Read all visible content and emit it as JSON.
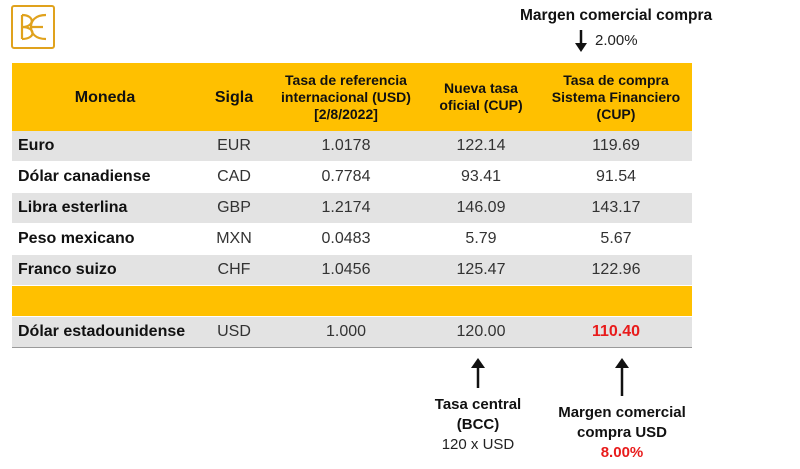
{
  "logo": {
    "alt": "BCC monogram"
  },
  "top_annotation": {
    "title": "Margen comercial compra",
    "value": "2.00%"
  },
  "table": {
    "headers": {
      "moneda": "Moneda",
      "sigla": "Sigla",
      "tasa_ref_line1": "Tasa de referencia",
      "tasa_ref_line2": "internacional (USD)",
      "tasa_ref_line3": "[2/8/2022]",
      "nueva_line1": "Nueva tasa",
      "nueva_line2": "oficial (CUP)",
      "compra_line1": "Tasa de compra",
      "compra_line2": "Sistema Financiero",
      "compra_line3": "(CUP)"
    },
    "rows": [
      {
        "moneda": "Euro",
        "sigla": "EUR",
        "ref": "1.0178",
        "oficial": "122.14",
        "compra": "119.69"
      },
      {
        "moneda": "Dólar canadiense",
        "sigla": "CAD",
        "ref": "0.7784",
        "oficial": "93.41",
        "compra": "91.54"
      },
      {
        "moneda": "Libra esterlina",
        "sigla": "GBP",
        "ref": "1.2174",
        "oficial": "146.09",
        "compra": "143.17"
      },
      {
        "moneda": "Peso mexicano",
        "sigla": "MXN",
        "ref": "0.0483",
        "oficial": "5.79",
        "compra": "5.67"
      },
      {
        "moneda": "Franco suizo",
        "sigla": "CHF",
        "ref": "1.0456",
        "oficial": "125.47",
        "compra": "122.96"
      }
    ],
    "usd_row": {
      "moneda": "Dólar estadounidense",
      "sigla": "USD",
      "ref": "1.000",
      "oficial": "120.00",
      "compra": "110.40"
    }
  },
  "bottom_annotations": {
    "central": {
      "line1": "Tasa central",
      "line2": "(BCC)",
      "line3": "120 x USD"
    },
    "margen_usd": {
      "line1": "Margen comercial",
      "line2": "compra USD",
      "value": "8.00%"
    }
  },
  "colors": {
    "header_bg": "#ffc000",
    "row_shade": "#e3e3e3",
    "highlight_red": "#e81b1b",
    "logo_gold": "#e0a21d"
  }
}
